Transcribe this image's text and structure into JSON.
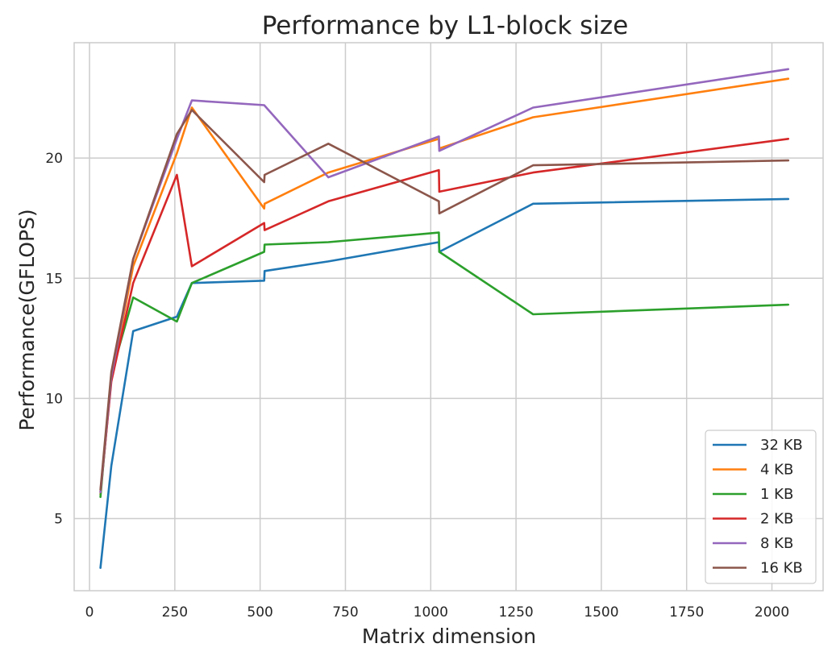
{
  "chart_data": {
    "type": "line",
    "title": "Performance by L1-block size",
    "xlabel": "Matrix dimension",
    "ylabel": "Performance(GFLOPS)",
    "xlim": [
      -45,
      2150
    ],
    "ylim": [
      2.0,
      24.8
    ],
    "xticks": [
      0,
      250,
      500,
      750,
      1000,
      1250,
      1500,
      1750,
      2000
    ],
    "yticks": [
      5,
      10,
      15,
      20
    ],
    "grid": true,
    "legend_position": "lower-right",
    "series": [
      {
        "name": "32 KB",
        "color": "#1f77b4",
        "points": [
          [
            32,
            2.95
          ],
          [
            64,
            7.2
          ],
          [
            128,
            12.8
          ],
          [
            256,
            13.4
          ],
          [
            300,
            14.8
          ],
          [
            512,
            14.9
          ],
          [
            513,
            15.3
          ],
          [
            700,
            15.7
          ],
          [
            1024,
            16.5
          ],
          [
            1025,
            16.1
          ],
          [
            1300,
            18.1
          ],
          [
            2048,
            18.3
          ]
        ]
      },
      {
        "name": "4 KB",
        "color": "#ff7f0e",
        "points": [
          [
            32,
            6.0
          ],
          [
            64,
            10.8
          ],
          [
            128,
            15.5
          ],
          [
            256,
            20.2
          ],
          [
            300,
            22.1
          ],
          [
            512,
            17.9
          ],
          [
            513,
            18.1
          ],
          [
            700,
            19.4
          ],
          [
            1024,
            20.8
          ],
          [
            1025,
            20.4
          ],
          [
            1300,
            21.7
          ],
          [
            2048,
            23.3
          ]
        ]
      },
      {
        "name": "1 KB",
        "color": "#2ca02c",
        "points": [
          [
            32,
            5.9
          ],
          [
            64,
            11.0
          ],
          [
            128,
            14.2
          ],
          [
            256,
            13.2
          ],
          [
            300,
            14.8
          ],
          [
            512,
            16.1
          ],
          [
            513,
            16.4
          ],
          [
            700,
            16.5
          ],
          [
            1024,
            16.9
          ],
          [
            1025,
            16.1
          ],
          [
            1300,
            13.5
          ],
          [
            2048,
            13.9
          ]
        ]
      },
      {
        "name": "2 KB",
        "color": "#d62728",
        "points": [
          [
            32,
            6.1
          ],
          [
            64,
            10.7
          ],
          [
            128,
            14.8
          ],
          [
            256,
            19.3
          ],
          [
            300,
            15.5
          ],
          [
            512,
            17.3
          ],
          [
            513,
            17.0
          ],
          [
            700,
            18.2
          ],
          [
            1024,
            19.5
          ],
          [
            1025,
            18.6
          ],
          [
            1300,
            19.4
          ],
          [
            2048,
            20.8
          ]
        ]
      },
      {
        "name": "8 KB",
        "color": "#9467bd",
        "points": [
          [
            32,
            6.1
          ],
          [
            64,
            10.9
          ],
          [
            128,
            15.8
          ],
          [
            256,
            20.8
          ],
          [
            300,
            22.4
          ],
          [
            512,
            22.2
          ],
          [
            700,
            19.2
          ],
          [
            1024,
            20.9
          ],
          [
            1025,
            20.3
          ],
          [
            1300,
            22.1
          ],
          [
            2048,
            23.7
          ]
        ]
      },
      {
        "name": "16 KB",
        "color": "#8c564b",
        "points": [
          [
            32,
            6.2
          ],
          [
            64,
            11.1
          ],
          [
            128,
            15.8
          ],
          [
            256,
            21.0
          ],
          [
            300,
            22.0
          ],
          [
            512,
            19.0
          ],
          [
            513,
            19.3
          ],
          [
            700,
            20.6
          ],
          [
            1024,
            18.2
          ],
          [
            1025,
            17.7
          ],
          [
            1300,
            19.7
          ],
          [
            2048,
            19.9
          ]
        ]
      }
    ]
  }
}
